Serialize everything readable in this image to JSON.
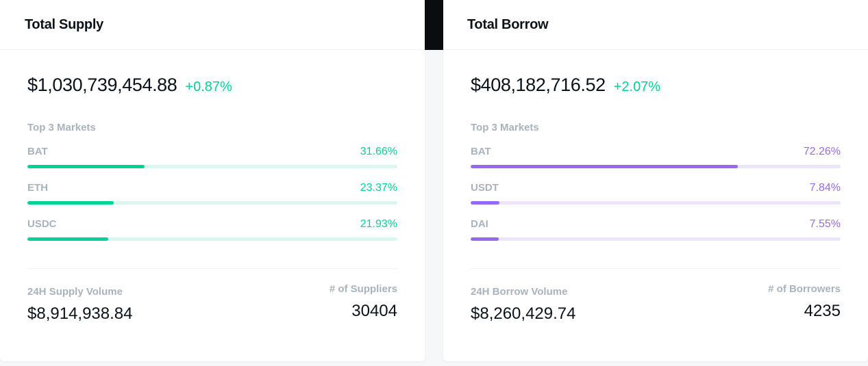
{
  "supply": {
    "title": "Total Supply",
    "total": "$1,030,739,454.88",
    "change": "+0.87%",
    "markets_label": "Top 3 Markets",
    "markets": [
      {
        "name": "BAT",
        "pct": "31.66%",
        "fill": 0.3166
      },
      {
        "name": "ETH",
        "pct": "23.37%",
        "fill": 0.2337
      },
      {
        "name": "USDC",
        "pct": "21.93%",
        "fill": 0.2193
      }
    ],
    "volume_label": "24H Supply Volume",
    "volume": "$8,914,938.84",
    "count_label": "# of Suppliers",
    "count": "30404",
    "accent": "#00d395"
  },
  "borrow": {
    "title": "Total Borrow",
    "total": "$408,182,716.52",
    "change": "+2.07%",
    "markets_label": "Top 3 Markets",
    "markets": [
      {
        "name": "BAT",
        "pct": "72.26%",
        "fill": 0.7226
      },
      {
        "name": "USDT",
        "pct": "7.84%",
        "fill": 0.0784
      },
      {
        "name": "DAI",
        "pct": "7.55%",
        "fill": 0.0755
      }
    ],
    "volume_label": "24H Borrow Volume",
    "volume": "$8,260,429.74",
    "count_label": "# of Borrowers",
    "count": "4235",
    "accent": "#9669ed"
  }
}
